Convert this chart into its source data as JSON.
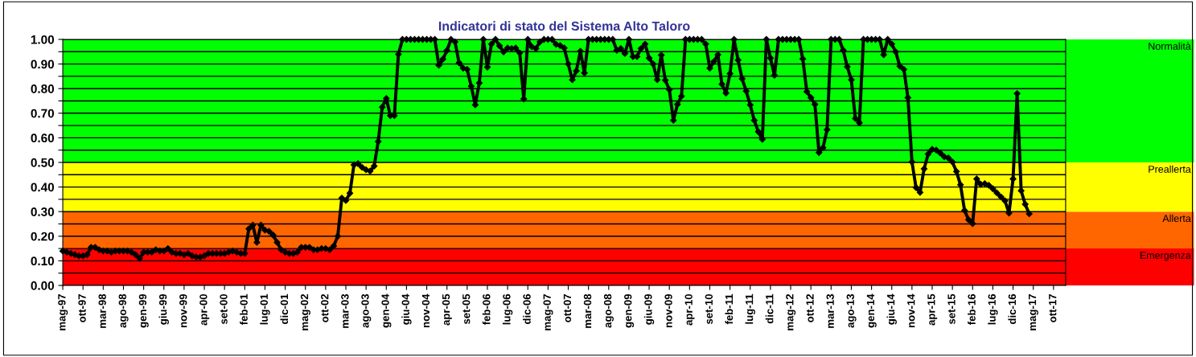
{
  "chart_data": {
    "type": "line",
    "title": "Indicatori di stato del Sistema Alto Taloro",
    "x": [
      "1997-05",
      "1997-06",
      "1997-07",
      "1997-08",
      "1997-09",
      "1997-10",
      "1997-11",
      "1997-12",
      "1998-01",
      "1998-02",
      "1998-03",
      "1998-04",
      "1998-05",
      "1998-06",
      "1998-07",
      "1998-08",
      "1998-09",
      "1998-10",
      "1998-11",
      "1998-12",
      "1999-01",
      "1999-02",
      "1999-03",
      "1999-04",
      "1999-05",
      "1999-06",
      "1999-07",
      "1999-08",
      "1999-09",
      "1999-10",
      "1999-11",
      "1999-12",
      "2000-01",
      "2000-02",
      "2000-03",
      "2000-04",
      "2000-05",
      "2000-06",
      "2000-07",
      "2000-08",
      "2000-09",
      "2000-10",
      "2000-11",
      "2000-12",
      "2001-01",
      "2001-02",
      "2001-03",
      "2001-04",
      "2001-05",
      "2001-06",
      "2001-07",
      "2001-08",
      "2001-09",
      "2001-10",
      "2001-11",
      "2001-12",
      "2002-01",
      "2002-02",
      "2002-03",
      "2002-04",
      "2002-05",
      "2002-06",
      "2002-07",
      "2002-08",
      "2002-09",
      "2002-10",
      "2002-11",
      "2002-12",
      "2003-01",
      "2003-02",
      "2003-03",
      "2003-04",
      "2003-05",
      "2003-06",
      "2003-07",
      "2003-08",
      "2003-09",
      "2003-10",
      "2003-11",
      "2003-12",
      "2004-01",
      "2004-02",
      "2004-03",
      "2004-04",
      "2004-05",
      "2004-06",
      "2004-07",
      "2004-08",
      "2004-09",
      "2004-10",
      "2004-11",
      "2004-12",
      "2005-01",
      "2005-02",
      "2005-03",
      "2005-04",
      "2005-05",
      "2005-06",
      "2005-07",
      "2005-08",
      "2005-09",
      "2005-10",
      "2005-11",
      "2005-12",
      "2006-01",
      "2006-02",
      "2006-03",
      "2006-04",
      "2006-05",
      "2006-06",
      "2006-07",
      "2006-08",
      "2006-09",
      "2006-10",
      "2006-11",
      "2006-12",
      "2007-01",
      "2007-02",
      "2007-03",
      "2007-04",
      "2007-05",
      "2007-06",
      "2007-07",
      "2007-08",
      "2007-09",
      "2007-10",
      "2007-11",
      "2007-12",
      "2008-01",
      "2008-02",
      "2008-03",
      "2008-04",
      "2008-05",
      "2008-06",
      "2008-07",
      "2008-08",
      "2008-09",
      "2008-10",
      "2008-11",
      "2008-12",
      "2009-01",
      "2009-02",
      "2009-03",
      "2009-04",
      "2009-05",
      "2009-06",
      "2009-07",
      "2009-08",
      "2009-09",
      "2009-10",
      "2009-11",
      "2009-12",
      "2010-01",
      "2010-02",
      "2010-03",
      "2010-04",
      "2010-05",
      "2010-06",
      "2010-07",
      "2010-08",
      "2010-09",
      "2010-10",
      "2010-11",
      "2010-12",
      "2011-01",
      "2011-02",
      "2011-03",
      "2011-04",
      "2011-05",
      "2011-06",
      "2011-07",
      "2011-08",
      "2011-09",
      "2011-10",
      "2011-11",
      "2011-12",
      "2012-01",
      "2012-02",
      "2012-03",
      "2012-04",
      "2012-05",
      "2012-06",
      "2012-07",
      "2012-08",
      "2012-09",
      "2012-10",
      "2012-11",
      "2012-12",
      "2013-01",
      "2013-02",
      "2013-03",
      "2013-04",
      "2013-05",
      "2013-06",
      "2013-07",
      "2013-08",
      "2013-09",
      "2013-10",
      "2013-11",
      "2013-12",
      "2014-01",
      "2014-02",
      "2014-03",
      "2014-04",
      "2014-05",
      "2014-06",
      "2014-07",
      "2014-08",
      "2014-09",
      "2014-10",
      "2014-11",
      "2014-12",
      "2015-01",
      "2015-02",
      "2015-03",
      "2015-04",
      "2015-05",
      "2015-06",
      "2015-07",
      "2015-08",
      "2015-09",
      "2015-10",
      "2015-11",
      "2015-12",
      "2016-01",
      "2016-02",
      "2016-03",
      "2016-04",
      "2016-05",
      "2016-06",
      "2016-07",
      "2016-08",
      "2016-09",
      "2016-10",
      "2016-11",
      "2016-12",
      "2017-01",
      "2017-02",
      "2017-03",
      "2017-04"
    ],
    "series": [
      {
        "color": "#000000",
        "values": [
          0.14,
          0.135,
          0.13,
          0.125,
          0.12,
          0.12,
          0.125,
          0.155,
          0.155,
          0.145,
          0.14,
          0.14,
          0.135,
          0.14,
          0.14,
          0.14,
          0.14,
          0.135,
          0.125,
          0.11,
          0.135,
          0.135,
          0.135,
          0.145,
          0.14,
          0.14,
          0.15,
          0.135,
          0.13,
          0.13,
          0.125,
          0.13,
          0.12,
          0.115,
          0.115,
          0.12,
          0.13,
          0.13,
          0.13,
          0.13,
          0.13,
          0.135,
          0.14,
          0.135,
          0.13,
          0.13,
          0.23,
          0.245,
          0.175,
          0.245,
          0.225,
          0.22,
          0.205,
          0.175,
          0.145,
          0.135,
          0.13,
          0.13,
          0.135,
          0.155,
          0.155,
          0.155,
          0.145,
          0.145,
          0.15,
          0.15,
          0.145,
          0.16,
          0.2,
          0.355,
          0.345,
          0.375,
          0.49,
          0.495,
          0.48,
          0.47,
          0.465,
          0.485,
          0.585,
          0.725,
          0.76,
          0.69,
          0.69,
          0.94,
          1,
          1,
          1,
          1,
          1,
          1,
          1,
          1,
          1,
          0.895,
          0.92,
          0.955,
          1,
          0.99,
          0.905,
          0.883,
          0.878,
          0.81,
          0.734,
          0.823,
          1,
          0.887,
          0.981,
          1,
          0.974,
          0.949,
          0.965,
          0.963,
          0.965,
          0.945,
          0.758,
          1,
          0.97,
          0.963,
          0.99,
          1,
          1,
          1,
          0.98,
          0.975,
          0.965,
          0.9,
          0.836,
          0.872,
          0.952,
          0.864,
          1,
          1,
          1,
          1,
          1,
          1,
          1,
          0.956,
          0.963,
          0.943,
          1,
          0.93,
          0.93,
          0.963,
          0.981,
          0.924,
          0.9,
          0.836,
          0.936,
          0.834,
          0.796,
          0.671,
          0.736,
          0.769,
          1,
          1,
          1,
          1,
          1,
          0.981,
          0.883,
          0.91,
          0.938,
          0.818,
          0.782,
          0.861,
          1,
          0.916,
          0.84,
          0.79,
          0.734,
          0.671,
          0.625,
          0.594,
          1,
          0.924,
          0.854,
          1,
          1,
          1,
          1,
          1,
          1,
          0.921,
          0.788,
          0.763,
          0.736,
          0.54,
          0.56,
          0.633,
          1,
          1,
          1,
          0.956,
          0.889,
          0.836,
          0.679,
          0.661,
          1,
          1,
          1,
          1,
          1,
          0.938,
          1,
          0.981,
          0.949,
          0.891,
          0.878,
          0.763,
          0.502,
          0.398,
          0.378,
          0.474,
          0.534,
          0.553,
          0.55,
          0.538,
          0.523,
          0.518,
          0.502,
          0.463,
          0.409,
          0.305,
          0.267,
          0.251,
          0.433,
          0.411,
          0.414,
          0.407,
          0.393,
          0.376,
          0.36,
          0.344,
          0.294,
          0.433,
          0.78,
          0.385,
          0.33,
          0.291
        ]
      }
    ],
    "marker": "diamond",
    "line_style": "solid",
    "grid": "y",
    "xlim": [
      "1997-05",
      "2018-01"
    ],
    "xticks": [
      {
        "value": "1997-05",
        "label": "mag-97"
      },
      {
        "value": "1997-10",
        "label": "ott-97"
      },
      {
        "value": "1998-03",
        "label": "mar-98"
      },
      {
        "value": "1998-08",
        "label": "ago-98"
      },
      {
        "value": "1999-01",
        "label": "gen-99"
      },
      {
        "value": "1999-06",
        "label": "giu-99"
      },
      {
        "value": "1999-11",
        "label": "nov-99"
      },
      {
        "value": "2000-04",
        "label": "apr-00"
      },
      {
        "value": "2000-09",
        "label": "set-00"
      },
      {
        "value": "2001-02",
        "label": "feb-01"
      },
      {
        "value": "2001-07",
        "label": "lug-01"
      },
      {
        "value": "2001-12",
        "label": "dic-01"
      },
      {
        "value": "2002-05",
        "label": "mag-02"
      },
      {
        "value": "2002-10",
        "label": "ott-02"
      },
      {
        "value": "2003-03",
        "label": "mar-03"
      },
      {
        "value": "2003-08",
        "label": "ago-03"
      },
      {
        "value": "2004-01",
        "label": "gen-04"
      },
      {
        "value": "2004-06",
        "label": "giu-04"
      },
      {
        "value": "2004-11",
        "label": "nov-04"
      },
      {
        "value": "2005-04",
        "label": "apr-05"
      },
      {
        "value": "2005-09",
        "label": "set-05"
      },
      {
        "value": "2006-02",
        "label": "feb-06"
      },
      {
        "value": "2006-07",
        "label": "lug-06"
      },
      {
        "value": "2006-12",
        "label": "dic-06"
      },
      {
        "value": "2007-05",
        "label": "mag-07"
      },
      {
        "value": "2007-10",
        "label": "ott-07"
      },
      {
        "value": "2008-03",
        "label": "mar-08"
      },
      {
        "value": "2008-08",
        "label": "ago-08"
      },
      {
        "value": "2009-01",
        "label": "gen-09"
      },
      {
        "value": "2009-06",
        "label": "giu-09"
      },
      {
        "value": "2009-11",
        "label": "nov-09"
      },
      {
        "value": "2010-04",
        "label": "apr-10"
      },
      {
        "value": "2010-09",
        "label": "set-10"
      },
      {
        "value": "2011-02",
        "label": "feb-11"
      },
      {
        "value": "2011-07",
        "label": "lug-11"
      },
      {
        "value": "2011-12",
        "label": "dic-11"
      },
      {
        "value": "2012-05",
        "label": "mag-12"
      },
      {
        "value": "2012-10",
        "label": "ott-12"
      },
      {
        "value": "2013-03",
        "label": "mar-13"
      },
      {
        "value": "2013-08",
        "label": "ago-13"
      },
      {
        "value": "2014-01",
        "label": "gen-14"
      },
      {
        "value": "2014-06",
        "label": "giu-14"
      },
      {
        "value": "2014-11",
        "label": "nov-14"
      },
      {
        "value": "2015-04",
        "label": "apr-15"
      },
      {
        "value": "2015-09",
        "label": "set-15"
      },
      {
        "value": "2016-02",
        "label": "feb-16"
      },
      {
        "value": "2016-07",
        "label": "lug-16"
      },
      {
        "value": "2016-12",
        "label": "dic-16"
      },
      {
        "value": "2017-05",
        "label": "mag-17"
      },
      {
        "value": "2017-10",
        "label": "ott-17"
      }
    ],
    "ylim": [
      0,
      1
    ],
    "yticks": [
      {
        "value": 0,
        "label": "0.00"
      },
      {
        "value": 0.05,
        "label": null
      },
      {
        "value": 0.1,
        "label": "0.10"
      },
      {
        "value": 0.15,
        "label": null
      },
      {
        "value": 0.2,
        "label": "0.20"
      },
      {
        "value": 0.25,
        "label": null
      },
      {
        "value": 0.3,
        "label": "0.30"
      },
      {
        "value": 0.35,
        "label": null
      },
      {
        "value": 0.4,
        "label": "0.40"
      },
      {
        "value": 0.45,
        "label": null
      },
      {
        "value": 0.5,
        "label": "0.50"
      },
      {
        "value": 0.55,
        "label": null
      },
      {
        "value": 0.6,
        "label": "0.60"
      },
      {
        "value": 0.65,
        "label": null
      },
      {
        "value": 0.7,
        "label": "0.70"
      },
      {
        "value": 0.75,
        "label": null
      },
      {
        "value": 0.8,
        "label": "0.80"
      },
      {
        "value": 0.85,
        "label": null
      },
      {
        "value": 0.9,
        "label": "0.90"
      },
      {
        "value": 0.95,
        "label": null
      },
      {
        "value": 1,
        "label": "1.00"
      }
    ],
    "bands": [
      {
        "axis": "y",
        "from": 0,
        "to": 0.15,
        "label": "Emergenza",
        "color": "#ff0000"
      },
      {
        "axis": "y",
        "from": 0.15,
        "to": 0.3,
        "label": "Allerta",
        "color": "#ff6600"
      },
      {
        "axis": "y",
        "from": 0.3,
        "to": 0.5,
        "label": "Preallerta",
        "color": "#ffff00"
      },
      {
        "axis": "y",
        "from": 0.5,
        "to": 1,
        "label": "Normalità",
        "color": "#00ff00"
      }
    ]
  }
}
